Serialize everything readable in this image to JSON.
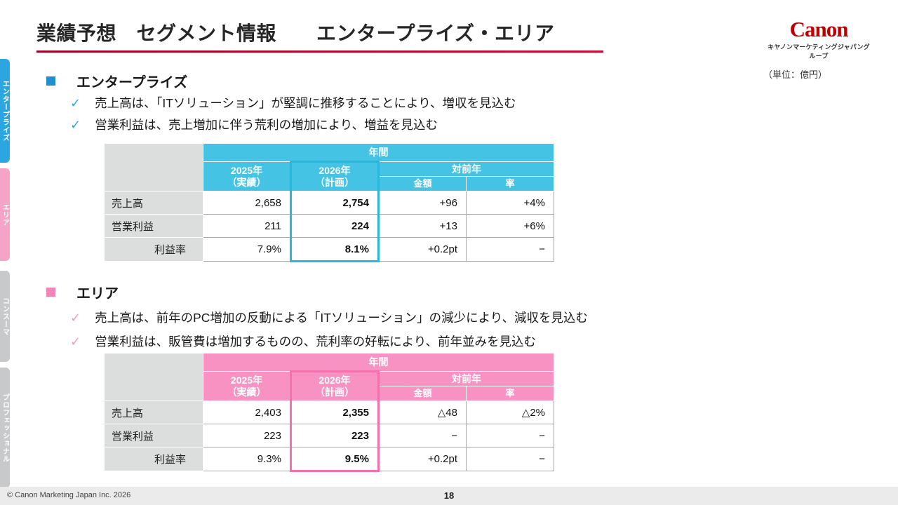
{
  "page": {
    "title": "業績予想　セグメント情報　　エンタープライズ・エリア",
    "unit_label": "（単位：億円）",
    "footer_copyright": "© Canon Marketing Japan Inc. 2026",
    "page_number": "18"
  },
  "logo": {
    "brand": "Canon",
    "subtitle": "キヤノンマーケティングジャパングループ"
  },
  "colors": {
    "canon_red": "#bf0000",
    "enterprise_accent": "#2ca6e0",
    "area_accent": "#f49bc1",
    "enterprise_header": "#44c3e4",
    "area_header": "#f792c2"
  },
  "icons": {
    "check": "✓"
  },
  "sidebar": {
    "items": [
      {
        "label": "エンタープライズ"
      },
      {
        "label": "エリア"
      },
      {
        "label": "コンスーマ"
      },
      {
        "label": "プロフェッショナル"
      }
    ]
  },
  "enterprise": {
    "heading": "エンタープライズ",
    "bullets": [
      "売上高は、「ITソリューション」が堅調に推移することにより、増収を見込む",
      "営業利益は、売上増加に伴う荒利の増加により、増益を見込む"
    ],
    "table": {
      "period_header": "年間",
      "col_2025": "2025年",
      "col_2025_sub": "（実績）",
      "col_2026": "2026年",
      "col_2026_sub": "（計画）",
      "col_yoy": "対前年",
      "col_amount": "金額",
      "col_rate": "率",
      "rows": [
        {
          "label": "売上高",
          "v2025": "2,658",
          "v2026": "2,754",
          "amount": "+96",
          "rate": "+4%"
        },
        {
          "label": "営業利益",
          "v2025": "211",
          "v2026": "224",
          "amount": "+13",
          "rate": "+6%"
        },
        {
          "label": "利益率",
          "v2025": "7.9%",
          "v2026": "8.1%",
          "amount": "+0.2pt",
          "rate": "−"
        }
      ]
    }
  },
  "area": {
    "heading": "エリア",
    "bullets": [
      "売上高は、前年のPC増加の反動による「ITソリューション」の減少により、減収を見込む",
      "営業利益は、販管費は増加するものの、荒利率の好転により、前年並みを見込む"
    ],
    "table": {
      "period_header": "年間",
      "col_2025": "2025年",
      "col_2025_sub": "（実績）",
      "col_2026": "2026年",
      "col_2026_sub": "（計画）",
      "col_yoy": "対前年",
      "col_amount": "金額",
      "col_rate": "率",
      "rows": [
        {
          "label": "売上高",
          "v2025": "2,403",
          "v2026": "2,355",
          "amount": "△48",
          "rate": "△2%"
        },
        {
          "label": "営業利益",
          "v2025": "223",
          "v2026": "223",
          "amount": "−",
          "rate": "−"
        },
        {
          "label": "利益率",
          "v2025": "9.3%",
          "v2026": "9.5%",
          "amount": "+0.2pt",
          "rate": "−"
        }
      ]
    }
  }
}
